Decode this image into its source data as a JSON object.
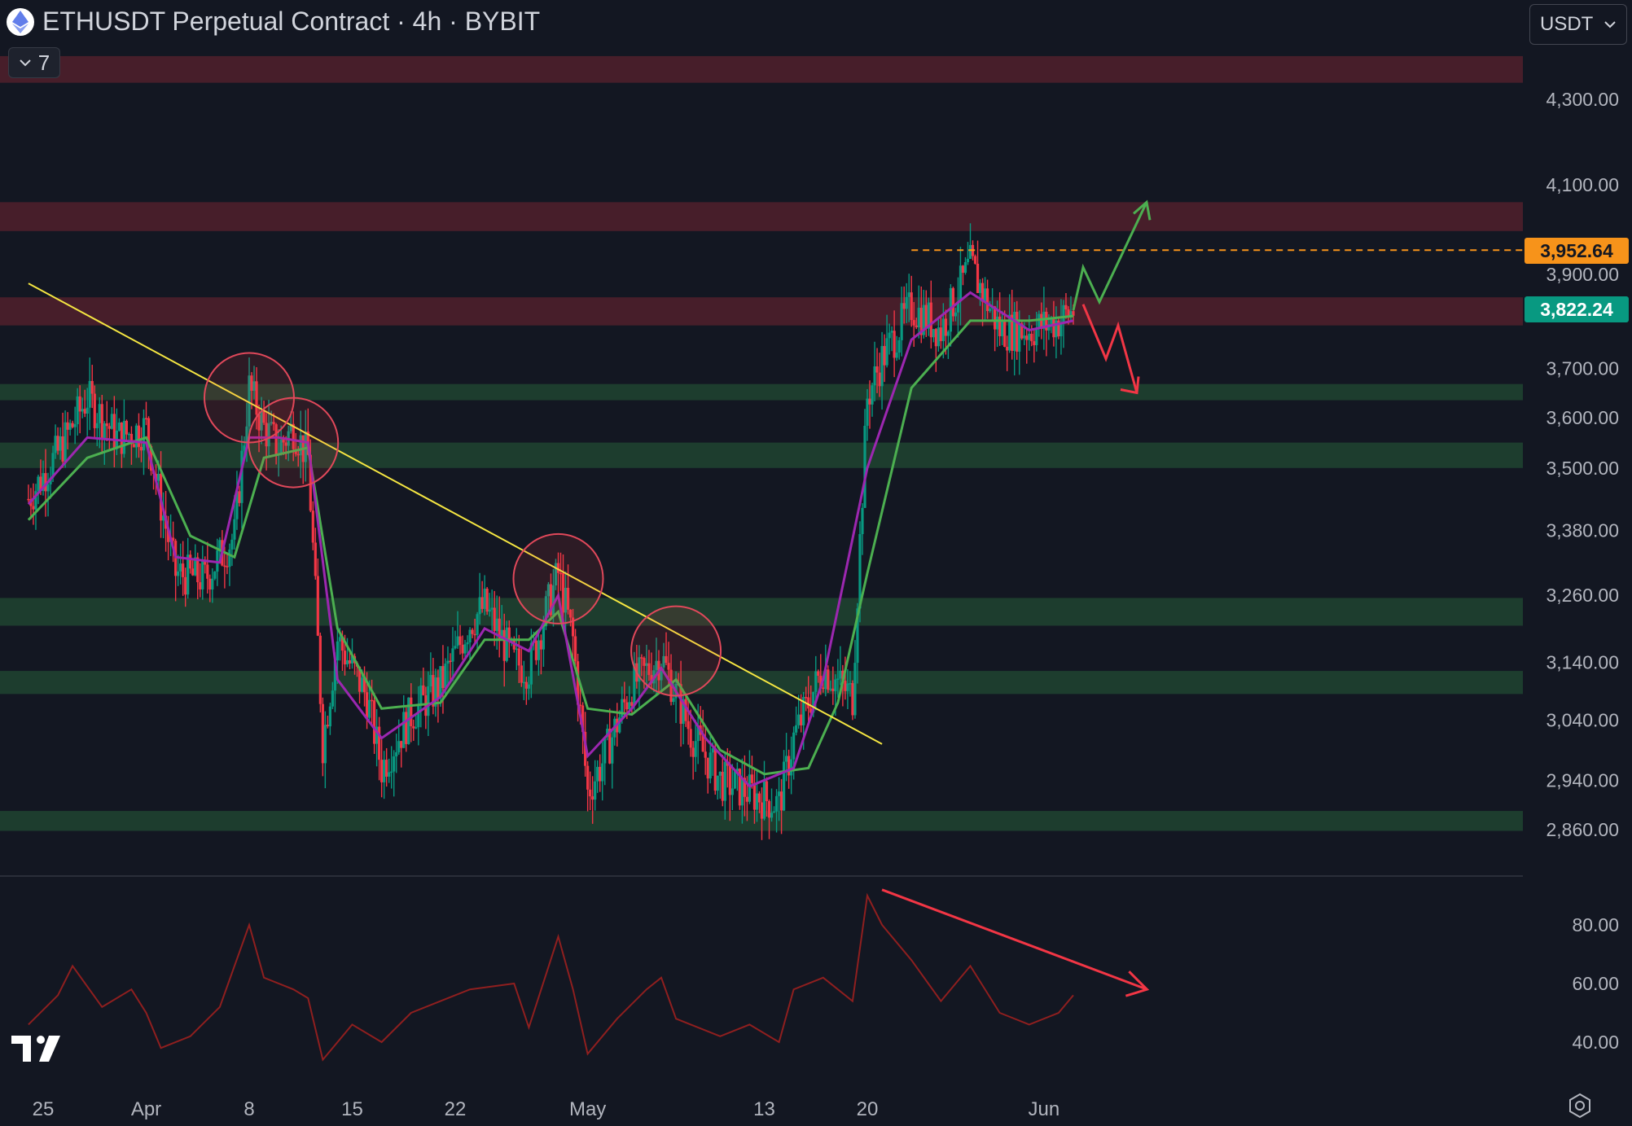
{
  "header": {
    "title": "ETHUSDT Perpetual Contract · 4h · BYBIT",
    "symbol_icon": "ethereum-logo-icon"
  },
  "indicators_toggle": {
    "count": "7",
    "icon": "chevron-down-icon"
  },
  "currency_selector": {
    "value": "USDT",
    "icon": "chevron-down-icon"
  },
  "price_labels": {
    "marked_level": "3,952.64",
    "last_price": "3,822.24"
  },
  "colors": {
    "background": "#131722",
    "up_candle": "#089981",
    "down_candle": "#f23645",
    "ema_fast": "#9c27b0",
    "ema_slow": "#4caf50",
    "resistance_zone": "#4a1f2b",
    "support_zone": "#1e3f2f",
    "trendline": "#f5e642",
    "marked_level_line": "#f7931a",
    "oscillator": "#8f1f1f",
    "arrow_up": "#4caf50",
    "arrow_down": "#f23645"
  },
  "chart_data": {
    "type": "line",
    "instrument": "ETHUSDT Perpetual Contract",
    "interval": "4h",
    "exchange": "BYBIT",
    "x_tick_labels": [
      "25",
      "Apr",
      "8",
      "15",
      "22",
      "May",
      "13",
      "20",
      "Jun"
    ],
    "price_axis": {
      "ticks": [
        "4,300.00",
        "4,100.00",
        "3,900.00",
        "3,700.00",
        "3,600.00",
        "3,500.00",
        "3,380.00",
        "3,260.00",
        "3,140.00",
        "3,040.00",
        "2,940.00",
        "2,860.00"
      ],
      "scale": "log"
    },
    "oscillator_axis": {
      "ticks": [
        "80.00",
        "60.00",
        "40.00"
      ],
      "ylim": [
        30,
        95
      ]
    },
    "price_path": [
      [
        "2024-03-24",
        3440
      ],
      [
        "2024-03-26",
        3530
      ],
      [
        "2024-03-28",
        3640
      ],
      [
        "2024-03-30",
        3560
      ],
      [
        "2024-04-01",
        3580
      ],
      [
        "2024-04-02",
        3430
      ],
      [
        "2024-04-03",
        3300
      ],
      [
        "2024-04-05",
        3290
      ],
      [
        "2024-04-07",
        3370
      ],
      [
        "2024-04-08",
        3660
      ],
      [
        "2024-04-09",
        3580
      ],
      [
        "2024-04-10",
        3540
      ],
      [
        "2024-04-11",
        3580
      ],
      [
        "2024-04-12",
        3520
      ],
      [
        "2024-04-13",
        3000
      ],
      [
        "2024-04-14",
        3180
      ],
      [
        "2024-04-16",
        3080
      ],
      [
        "2024-04-17",
        2960
      ],
      [
        "2024-04-19",
        3050
      ],
      [
        "2024-04-21",
        3100
      ],
      [
        "2024-04-23",
        3210
      ],
      [
        "2024-04-24",
        3240
      ],
      [
        "2024-04-26",
        3140
      ],
      [
        "2024-04-27",
        3130
      ],
      [
        "2024-04-29",
        3300
      ],
      [
        "2024-04-30",
        3180
      ],
      [
        "2024-05-01",
        2920
      ],
      [
        "2024-05-02",
        2970
      ],
      [
        "2024-05-04",
        3100
      ],
      [
        "2024-05-06",
        3150
      ],
      [
        "2024-05-08",
        3020
      ],
      [
        "2024-05-10",
        2940
      ],
      [
        "2024-05-12",
        2920
      ],
      [
        "2024-05-14",
        2900
      ],
      [
        "2024-05-15",
        3010
      ],
      [
        "2024-05-17",
        3130
      ],
      [
        "2024-05-19",
        3080
      ],
      [
        "2024-05-20",
        3640
      ],
      [
        "2024-05-21",
        3720
      ],
      [
        "2024-05-23",
        3830
      ],
      [
        "2024-05-25",
        3780
      ],
      [
        "2024-05-27",
        3920
      ],
      [
        "2024-05-29",
        3780
      ],
      [
        "2024-05-31",
        3780
      ],
      [
        "2024-06-02",
        3800
      ],
      [
        "2024-06-03",
        3822
      ]
    ],
    "ema_fast_path": [
      [
        "2024-03-24",
        3430
      ],
      [
        "2024-03-28",
        3560
      ],
      [
        "2024-04-01",
        3550
      ],
      [
        "2024-04-03",
        3330
      ],
      [
        "2024-04-06",
        3320
      ],
      [
        "2024-04-08",
        3560
      ],
      [
        "2024-04-10",
        3560
      ],
      [
        "2024-04-12",
        3550
      ],
      [
        "2024-04-14",
        3110
      ],
      [
        "2024-04-17",
        3010
      ],
      [
        "2024-04-21",
        3080
      ],
      [
        "2024-04-24",
        3200
      ],
      [
        "2024-04-27",
        3160
      ],
      [
        "2024-04-29",
        3260
      ],
      [
        "2024-05-01",
        2980
      ],
      [
        "2024-05-04",
        3060
      ],
      [
        "2024-05-06",
        3130
      ],
      [
        "2024-05-09",
        3010
      ],
      [
        "2024-05-12",
        2930
      ],
      [
        "2024-05-15",
        2960
      ],
      [
        "2024-05-17",
        3110
      ],
      [
        "2024-05-20",
        3500
      ],
      [
        "2024-05-23",
        3760
      ],
      [
        "2024-05-27",
        3860
      ],
      [
        "2024-05-31",
        3780
      ],
      [
        "2024-06-03",
        3800
      ]
    ],
    "ema_slow_path": [
      [
        "2024-03-24",
        3400
      ],
      [
        "2024-03-28",
        3520
      ],
      [
        "2024-04-01",
        3560
      ],
      [
        "2024-04-04",
        3370
      ],
      [
        "2024-04-07",
        3330
      ],
      [
        "2024-04-09",
        3520
      ],
      [
        "2024-04-12",
        3540
      ],
      [
        "2024-04-14",
        3200
      ],
      [
        "2024-04-17",
        3060
      ],
      [
        "2024-04-21",
        3070
      ],
      [
        "2024-04-24",
        3180
      ],
      [
        "2024-04-27",
        3180
      ],
      [
        "2024-04-29",
        3230
      ],
      [
        "2024-05-01",
        3060
      ],
      [
        "2024-05-04",
        3050
      ],
      [
        "2024-05-07",
        3110
      ],
      [
        "2024-05-10",
        2990
      ],
      [
        "2024-05-13",
        2950
      ],
      [
        "2024-05-16",
        2960
      ],
      [
        "2024-05-18",
        3070
      ],
      [
        "2024-05-20",
        3300
      ],
      [
        "2024-05-23",
        3660
      ],
      [
        "2024-05-27",
        3800
      ],
      [
        "2024-05-31",
        3800
      ],
      [
        "2024-06-03",
        3810
      ]
    ],
    "oscillator_path": [
      [
        "2024-03-24",
        46
      ],
      [
        "2024-03-26",
        56
      ],
      [
        "2024-03-27",
        66
      ],
      [
        "2024-03-29",
        52
      ],
      [
        "2024-03-31",
        58
      ],
      [
        "2024-04-01",
        50
      ],
      [
        "2024-04-02",
        38
      ],
      [
        "2024-04-04",
        42
      ],
      [
        "2024-04-06",
        52
      ],
      [
        "2024-04-08",
        80
      ],
      [
        "2024-04-09",
        62
      ],
      [
        "2024-04-11",
        58
      ],
      [
        "2024-04-12",
        55
      ],
      [
        "2024-04-13",
        34
      ],
      [
        "2024-04-15",
        46
      ],
      [
        "2024-04-17",
        40
      ],
      [
        "2024-04-19",
        50
      ],
      [
        "2024-04-21",
        54
      ],
      [
        "2024-04-23",
        58
      ],
      [
        "2024-04-26",
        60
      ],
      [
        "2024-04-27",
        45
      ],
      [
        "2024-04-29",
        76
      ],
      [
        "2024-04-30",
        58
      ],
      [
        "2024-05-01",
        36
      ],
      [
        "2024-05-03",
        48
      ],
      [
        "2024-05-05",
        58
      ],
      [
        "2024-05-06",
        62
      ],
      [
        "2024-05-07",
        48
      ],
      [
        "2024-05-10",
        42
      ],
      [
        "2024-05-12",
        46
      ],
      [
        "2024-05-14",
        40
      ],
      [
        "2024-05-15",
        58
      ],
      [
        "2024-05-17",
        62
      ],
      [
        "2024-05-19",
        54
      ],
      [
        "2024-05-20",
        90
      ],
      [
        "2024-05-21",
        80
      ],
      [
        "2024-05-23",
        68
      ],
      [
        "2024-05-25",
        54
      ],
      [
        "2024-05-27",
        66
      ],
      [
        "2024-05-29",
        50
      ],
      [
        "2024-05-31",
        46
      ],
      [
        "2024-06-02",
        50
      ],
      [
        "2024-06-03",
        56
      ]
    ],
    "resistance_zones": [
      [
        4340,
        4405
      ],
      [
        3995,
        4060
      ],
      [
        3790,
        3850
      ]
    ],
    "support_zones": [
      [
        3635,
        3668
      ],
      [
        3500,
        3550
      ],
      [
        3205,
        3255
      ],
      [
        3085,
        3125
      ],
      [
        2858,
        2890
      ]
    ],
    "trendline": {
      "from": [
        "2024-03-24",
        3880
      ],
      "to": [
        "2024-05-21",
        3000
      ]
    },
    "marked_level": 3952.64,
    "last_price": 3822.24,
    "annotations": {
      "touch_circles": [
        [
          "2024-04-08",
          3640
        ],
        [
          "2024-04-11",
          3550
        ],
        [
          "2024-04-29",
          3290
        ],
        [
          "2024-05-07",
          3160
        ]
      ],
      "scenario_up": "bullish continuation arrow",
      "scenario_down": "bearish pullback arrow",
      "oscillator_divergence_arrow": "declining"
    }
  }
}
